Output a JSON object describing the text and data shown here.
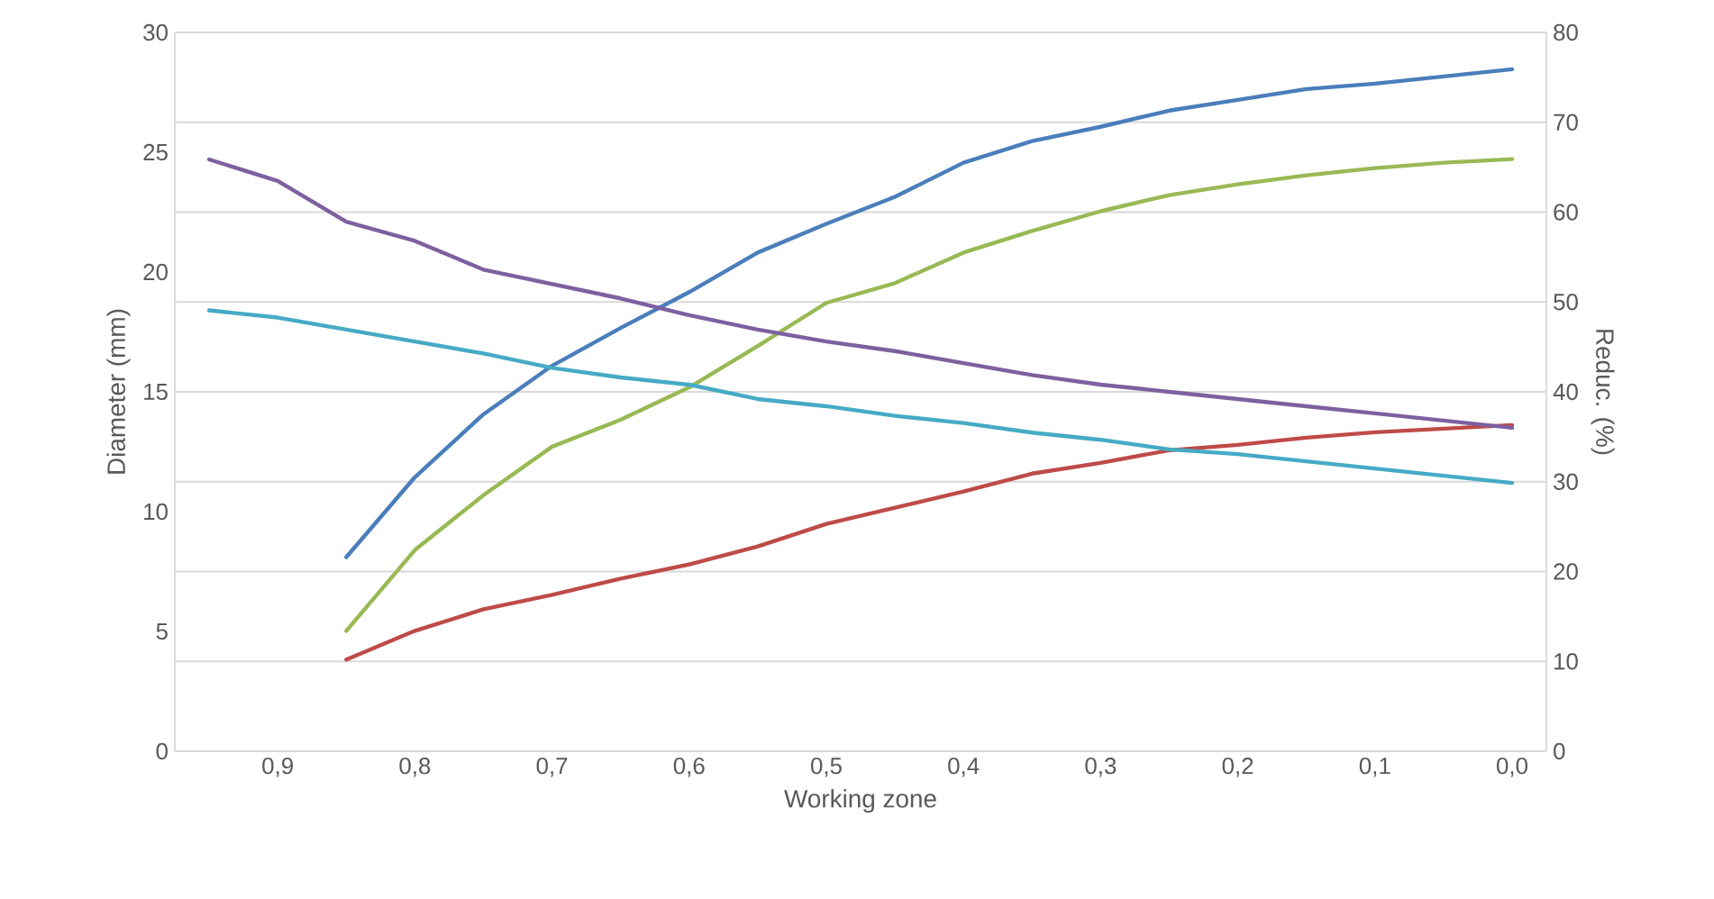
{
  "chart_data": {
    "type": "line",
    "xlabel": "Working zone",
    "ylabel": "Diameter (mm)",
    "y2label": "Reduc. (%)",
    "categories": [
      null,
      "0,9",
      null,
      "0,8",
      null,
      "0,7",
      null,
      "0,6",
      null,
      "0,5",
      null,
      "0,4",
      null,
      "0,3",
      null,
      "0,2",
      null,
      "0,1",
      null,
      "0,0"
    ],
    "ylim": [
      0,
      30
    ],
    "yticks": [
      0,
      5,
      10,
      15,
      20,
      25,
      30
    ],
    "y2lim": [
      0,
      80
    ],
    "y2ticks": [
      0,
      10,
      20,
      30,
      40,
      50,
      60,
      70,
      80
    ],
    "grid": true,
    "series": [
      {
        "color": "#4a7ebb",
        "axis": "y2",
        "values": [
          null,
          null,
          21.6,
          30.5,
          37.5,
          42.9,
          47.1,
          51.1,
          55.5,
          58.7,
          61.7,
          65.5,
          67.9,
          69.5,
          71.3,
          72.5,
          73.7,
          74.3,
          75.1,
          75.9
        ]
      },
      {
        "color": "#be4b48",
        "axis": "y2",
        "values": [
          null,
          null,
          10.2,
          13.4,
          15.8,
          17.4,
          19.2,
          20.8,
          22.8,
          25.3,
          27.1,
          28.9,
          30.9,
          32.1,
          33.5,
          34.1,
          34.9,
          35.5,
          35.9,
          36.3
        ]
      },
      {
        "color": "#98b954",
        "axis": "y2",
        "values": [
          null,
          null,
          13.4,
          22.4,
          28.5,
          33.9,
          36.9,
          40.5,
          45.1,
          49.9,
          52.1,
          55.5,
          57.9,
          60.1,
          61.9,
          63.1,
          64.1,
          64.9,
          65.5,
          65.9
        ]
      },
      {
        "color": "#7d60a0",
        "axis": "y",
        "values": [
          24.7,
          23.8,
          22.1,
          21.3,
          20.1,
          19.5,
          18.9,
          18.2,
          17.6,
          17.1,
          16.7,
          16.2,
          15.7,
          15.3,
          15.0,
          14.7,
          14.4,
          14.1,
          13.8,
          13.5
        ]
      },
      {
        "color": "#46aac5",
        "axis": "y",
        "values": [
          18.4,
          18.1,
          17.6,
          17.1,
          16.6,
          16.0,
          15.6,
          15.3,
          14.7,
          14.4,
          14.0,
          13.7,
          13.3,
          13.0,
          12.6,
          12.4,
          12.1,
          11.8,
          11.5,
          11.2
        ]
      }
    ]
  }
}
